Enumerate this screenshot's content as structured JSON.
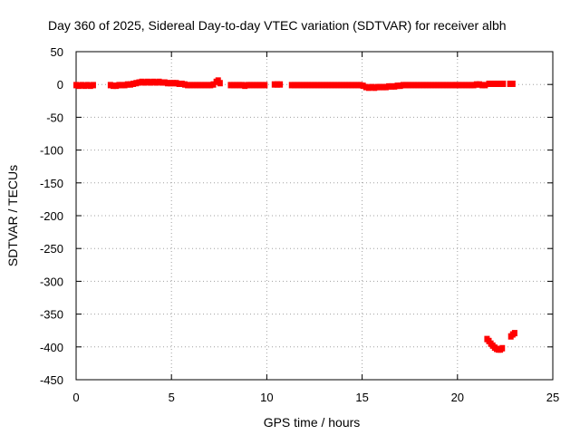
{
  "chart_data": {
    "type": "scatter",
    "title": "Day 360 of 2025, Sidereal Day-to-day VTEC variation (SDTVAR) for receiver albh",
    "xlabel": "GPS time / hours",
    "ylabel": "SDTVAR / TECUs",
    "xlim": [
      0,
      25
    ],
    "ylim": [
      -450,
      50
    ],
    "xticks": [
      0,
      5,
      10,
      15,
      20,
      25
    ],
    "yticks": [
      50,
      0,
      -50,
      -100,
      -150,
      -200,
      -250,
      -300,
      -350,
      -400,
      -450
    ],
    "grid": true,
    "color": "#ff0000",
    "series": [
      {
        "points": [
          [
            0.0,
            -1
          ],
          [
            0.15,
            -2
          ],
          [
            0.3,
            -1
          ],
          [
            0.45,
            -2
          ],
          [
            0.6,
            -1
          ],
          [
            0.75,
            -2
          ],
          [
            0.9,
            -1
          ],
          [
            1.8,
            -1
          ],
          [
            1.95,
            -2
          ],
          [
            2.1,
            -2
          ],
          [
            2.25,
            -1
          ],
          [
            2.4,
            -1
          ],
          [
            2.55,
            -1
          ],
          [
            2.7,
            0
          ],
          [
            2.85,
            0
          ],
          [
            3.0,
            1
          ],
          [
            3.15,
            2
          ],
          [
            3.3,
            3
          ],
          [
            3.45,
            4
          ],
          [
            3.6,
            3
          ],
          [
            3.75,
            4
          ],
          [
            3.9,
            3
          ],
          [
            4.05,
            4
          ],
          [
            4.2,
            3
          ],
          [
            4.35,
            4
          ],
          [
            4.5,
            3
          ],
          [
            4.65,
            3
          ],
          [
            4.8,
            2
          ],
          [
            4.95,
            2
          ],
          [
            5.1,
            2
          ],
          [
            5.25,
            2
          ],
          [
            5.4,
            1
          ],
          [
            5.55,
            1
          ],
          [
            5.7,
            0
          ],
          [
            5.85,
            -1
          ],
          [
            6.0,
            -1
          ],
          [
            6.15,
            -1
          ],
          [
            6.3,
            -1
          ],
          [
            6.45,
            -1
          ],
          [
            6.6,
            -1
          ],
          [
            6.75,
            -1
          ],
          [
            6.9,
            -1
          ],
          [
            7.05,
            -1
          ],
          [
            7.2,
            0
          ],
          [
            7.35,
            4
          ],
          [
            7.45,
            6
          ],
          [
            7.55,
            2
          ],
          [
            8.1,
            -1
          ],
          [
            8.25,
            -1
          ],
          [
            8.4,
            -1
          ],
          [
            8.55,
            -1
          ],
          [
            8.7,
            -1
          ],
          [
            8.85,
            -2
          ],
          [
            9.0,
            -1
          ],
          [
            9.15,
            -1
          ],
          [
            9.3,
            -1
          ],
          [
            9.45,
            -1
          ],
          [
            9.6,
            -1
          ],
          [
            9.75,
            -1
          ],
          [
            9.9,
            -1
          ],
          [
            10.4,
            0
          ],
          [
            10.55,
            0
          ],
          [
            10.7,
            0
          ],
          [
            11.3,
            -1
          ],
          [
            11.45,
            -1
          ],
          [
            11.6,
            -1
          ],
          [
            11.75,
            -1
          ],
          [
            11.9,
            -1
          ],
          [
            12.05,
            -1
          ],
          [
            12.2,
            -1
          ],
          [
            12.35,
            -1
          ],
          [
            12.5,
            -1
          ],
          [
            12.65,
            -1
          ],
          [
            12.8,
            -1
          ],
          [
            12.95,
            -1
          ],
          [
            13.1,
            -1
          ],
          [
            13.25,
            -1
          ],
          [
            13.4,
            -1
          ],
          [
            13.55,
            -1
          ],
          [
            13.7,
            -1
          ],
          [
            13.85,
            -1
          ],
          [
            14.0,
            -1
          ],
          [
            14.15,
            -1
          ],
          [
            14.3,
            -1
          ],
          [
            14.45,
            -1
          ],
          [
            14.6,
            -1
          ],
          [
            14.75,
            -1
          ],
          [
            14.9,
            -1
          ],
          [
            15.05,
            -2
          ],
          [
            15.2,
            -4
          ],
          [
            15.35,
            -5
          ],
          [
            15.5,
            -4
          ],
          [
            15.65,
            -5
          ],
          [
            15.8,
            -4
          ],
          [
            15.95,
            -4
          ],
          [
            16.1,
            -4
          ],
          [
            16.25,
            -4
          ],
          [
            16.4,
            -3
          ],
          [
            16.55,
            -3
          ],
          [
            16.7,
            -3
          ],
          [
            16.85,
            -2
          ],
          [
            17.0,
            -2
          ],
          [
            17.15,
            -1
          ],
          [
            17.3,
            -1
          ],
          [
            17.45,
            -1
          ],
          [
            17.6,
            -1
          ],
          [
            17.75,
            -1
          ],
          [
            17.9,
            -1
          ],
          [
            18.05,
            -1
          ],
          [
            18.2,
            -1
          ],
          [
            18.35,
            -1
          ],
          [
            18.5,
            -1
          ],
          [
            18.65,
            -1
          ],
          [
            18.8,
            -1
          ],
          [
            18.95,
            -1
          ],
          [
            19.1,
            -1
          ],
          [
            19.25,
            -1
          ],
          [
            19.4,
            -1
          ],
          [
            19.55,
            -1
          ],
          [
            19.7,
            -1
          ],
          [
            19.85,
            -1
          ],
          [
            19.95,
            -1
          ],
          [
            20.1,
            -1
          ],
          [
            20.25,
            -1
          ],
          [
            20.4,
            -1
          ],
          [
            20.55,
            -1
          ],
          [
            20.7,
            -1
          ],
          [
            20.85,
            -1
          ],
          [
            21.0,
            0
          ],
          [
            21.15,
            0
          ],
          [
            21.3,
            -1
          ],
          [
            21.45,
            -1
          ],
          [
            21.65,
            1
          ],
          [
            21.8,
            1
          ],
          [
            21.95,
            1
          ],
          [
            22.1,
            1
          ],
          [
            22.25,
            1
          ],
          [
            22.4,
            1
          ],
          [
            22.75,
            1
          ],
          [
            22.9,
            1
          ],
          [
            21.55,
            -388
          ],
          [
            21.65,
            -391
          ],
          [
            21.75,
            -395
          ],
          [
            21.85,
            -398
          ],
          [
            21.95,
            -401
          ],
          [
            22.05,
            -403
          ],
          [
            22.15,
            -404
          ],
          [
            22.25,
            -404
          ],
          [
            22.35,
            -402
          ],
          [
            22.8,
            -384
          ],
          [
            22.9,
            -381
          ],
          [
            23.0,
            -379
          ]
        ]
      }
    ]
  }
}
